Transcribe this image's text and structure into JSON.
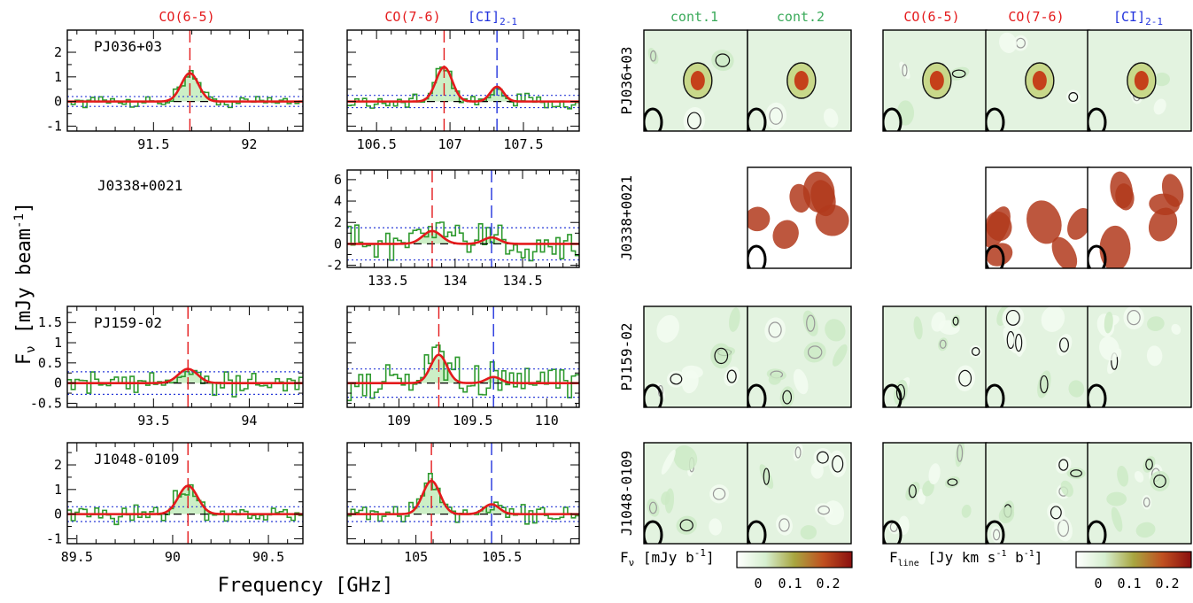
{
  "colors": {
    "line_red": "#e41a1c",
    "line_blue": "#2233dd",
    "cont_green": "#3aaa5a",
    "hist_green": "#2e9a2e",
    "fill_green": "#ccefc6",
    "noise_blue": "#2a3bd8"
  },
  "labels": {
    "ylabel": "F",
    "ylabel_sub": "ν",
    "ylabel_rest": " [mJy beam",
    "ylabel_sup": "-1",
    "ylabel_end": "]",
    "xlabel": "Frequency [GHz]",
    "header_co65": "CO(6-5)",
    "header_co76": "CO(7-6)",
    "header_ci": "[CI]",
    "header_ci_sub": "2-1",
    "header_cont1": "cont.1",
    "header_cont2": "cont.2",
    "cbar1_label": "F",
    "cbar1_sub": "ν",
    "cbar1_units": " [mJy b",
    "cbar1_sup": "-1",
    "cbar1_end": "]",
    "cbar2_label": "F",
    "cbar2_sub": "line",
    "cbar2_units": " [Jy km s",
    "cbar2_sup1": "-1",
    "cbar2_mid": " b",
    "cbar2_sup2": "-1",
    "cbar2_end": "]",
    "cbar_ticks": [
      "0",
      "0.1",
      "0.2"
    ]
  },
  "sources": [
    "PJ036+03",
    "J0338+0021",
    "PJ159-02",
    "J1048-0109"
  ],
  "chart_data": [
    {
      "type": "line",
      "source": "PJ036+03",
      "transition": "CO(6-5)",
      "xlim": [
        91.05,
        92.28
      ],
      "ylim": [
        -1.2,
        2.9
      ],
      "xticks": [
        91.5,
        92
      ],
      "yticks": [
        -1,
        0,
        1,
        2
      ],
      "lines": [
        {
          "name": "CO(6-5)",
          "freq": 91.69
        }
      ],
      "fit": [
        {
          "center": 91.69,
          "amp": 1.15,
          "sigma": 0.045
        }
      ],
      "noise": 0.2
    },
    {
      "type": "line",
      "source": "PJ036+03",
      "transition": "CO(7-6)",
      "xlim": [
        106.3,
        107.88
      ],
      "ylim": [
        -1.2,
        2.9
      ],
      "xticks": [
        106.5,
        107,
        107.5
      ],
      "yticks": [],
      "lines": [
        {
          "name": "CO(7-6)",
          "freq": 106.96
        },
        {
          "name": "[CI]2-1",
          "freq": 107.32
        }
      ],
      "fit": [
        {
          "center": 106.96,
          "amp": 1.4,
          "sigma": 0.055
        },
        {
          "center": 107.32,
          "amp": 0.6,
          "sigma": 0.045
        }
      ],
      "noise": 0.25
    },
    {
      "type": "line",
      "source": "J0338+0021",
      "transition": "CO(7-6)",
      "xlim": [
        133.2,
        134.92
      ],
      "ylim": [
        -2.2,
        6.9
      ],
      "xticks": [
        133.5,
        134,
        134.5
      ],
      "yticks": [
        -2,
        0,
        2,
        4,
        6
      ],
      "lines": [
        {
          "name": "CO(7-6)",
          "freq": 133.83
        },
        {
          "name": "[CI]2-1",
          "freq": 134.27
        }
      ],
      "fit": [
        {
          "center": 133.83,
          "amp": 1.2,
          "sigma": 0.07
        },
        {
          "center": 134.27,
          "amp": 0.6,
          "sigma": 0.06
        }
      ],
      "noise": 1.5
    },
    {
      "type": "line",
      "source": "PJ159-02",
      "transition": "CO(6-5)",
      "xlim": [
        93.05,
        94.28
      ],
      "ylim": [
        -0.6,
        1.9
      ],
      "xticks": [
        93.5,
        94
      ],
      "yticks": [
        -0.5,
        0,
        0.5,
        1,
        1.5
      ],
      "lines": [
        {
          "name": "CO(6-5)",
          "freq": 93.68
        }
      ],
      "fit": [
        {
          "center": 93.68,
          "amp": 0.35,
          "sigma": 0.05
        }
      ],
      "noise": 0.28
    },
    {
      "type": "line",
      "source": "PJ159-02",
      "transition": "CO(7-6)",
      "xlim": [
        108.65,
        110.22
      ],
      "ylim": [
        -0.6,
        1.9
      ],
      "xticks": [
        109,
        109.5,
        110
      ],
      "yticks": [],
      "lines": [
        {
          "name": "CO(7-6)",
          "freq": 109.27
        },
        {
          "name": "[CI]2-1",
          "freq": 109.64
        }
      ],
      "fit": [
        {
          "center": 109.27,
          "amp": 0.7,
          "sigma": 0.055
        },
        {
          "center": 109.64,
          "amp": 0.15,
          "sigma": 0.05
        }
      ],
      "noise": 0.35
    },
    {
      "type": "line",
      "source": "J1048-0109",
      "transition": "CO(6-5)",
      "xlim": [
        89.45,
        90.68
      ],
      "ylim": [
        -1.2,
        2.9
      ],
      "xticks": [
        89.5,
        90,
        90.5
      ],
      "yticks": [
        -1,
        0,
        1,
        2
      ],
      "lines": [
        {
          "name": "CO(6-5)",
          "freq": 90.08
        }
      ],
      "fit": [
        {
          "center": 90.08,
          "amp": 1.15,
          "sigma": 0.05
        }
      ],
      "noise": 0.3
    },
    {
      "type": "line",
      "source": "J1048-0109",
      "transition": "CO(7-6)",
      "xlim": [
        104.6,
        105.95
      ],
      "ylim": [
        -1.2,
        2.9
      ],
      "xticks": [
        105,
        105.5
      ],
      "yticks": [],
      "lines": [
        {
          "name": "CO(7-6)",
          "freq": 105.09
        },
        {
          "name": "[CI]2-1",
          "freq": 105.44
        }
      ],
      "fit": [
        {
          "center": 105.09,
          "amp": 1.35,
          "sigma": 0.05
        },
        {
          "center": 105.44,
          "amp": 0.4,
          "sigma": 0.045
        }
      ],
      "noise": 0.3
    }
  ]
}
